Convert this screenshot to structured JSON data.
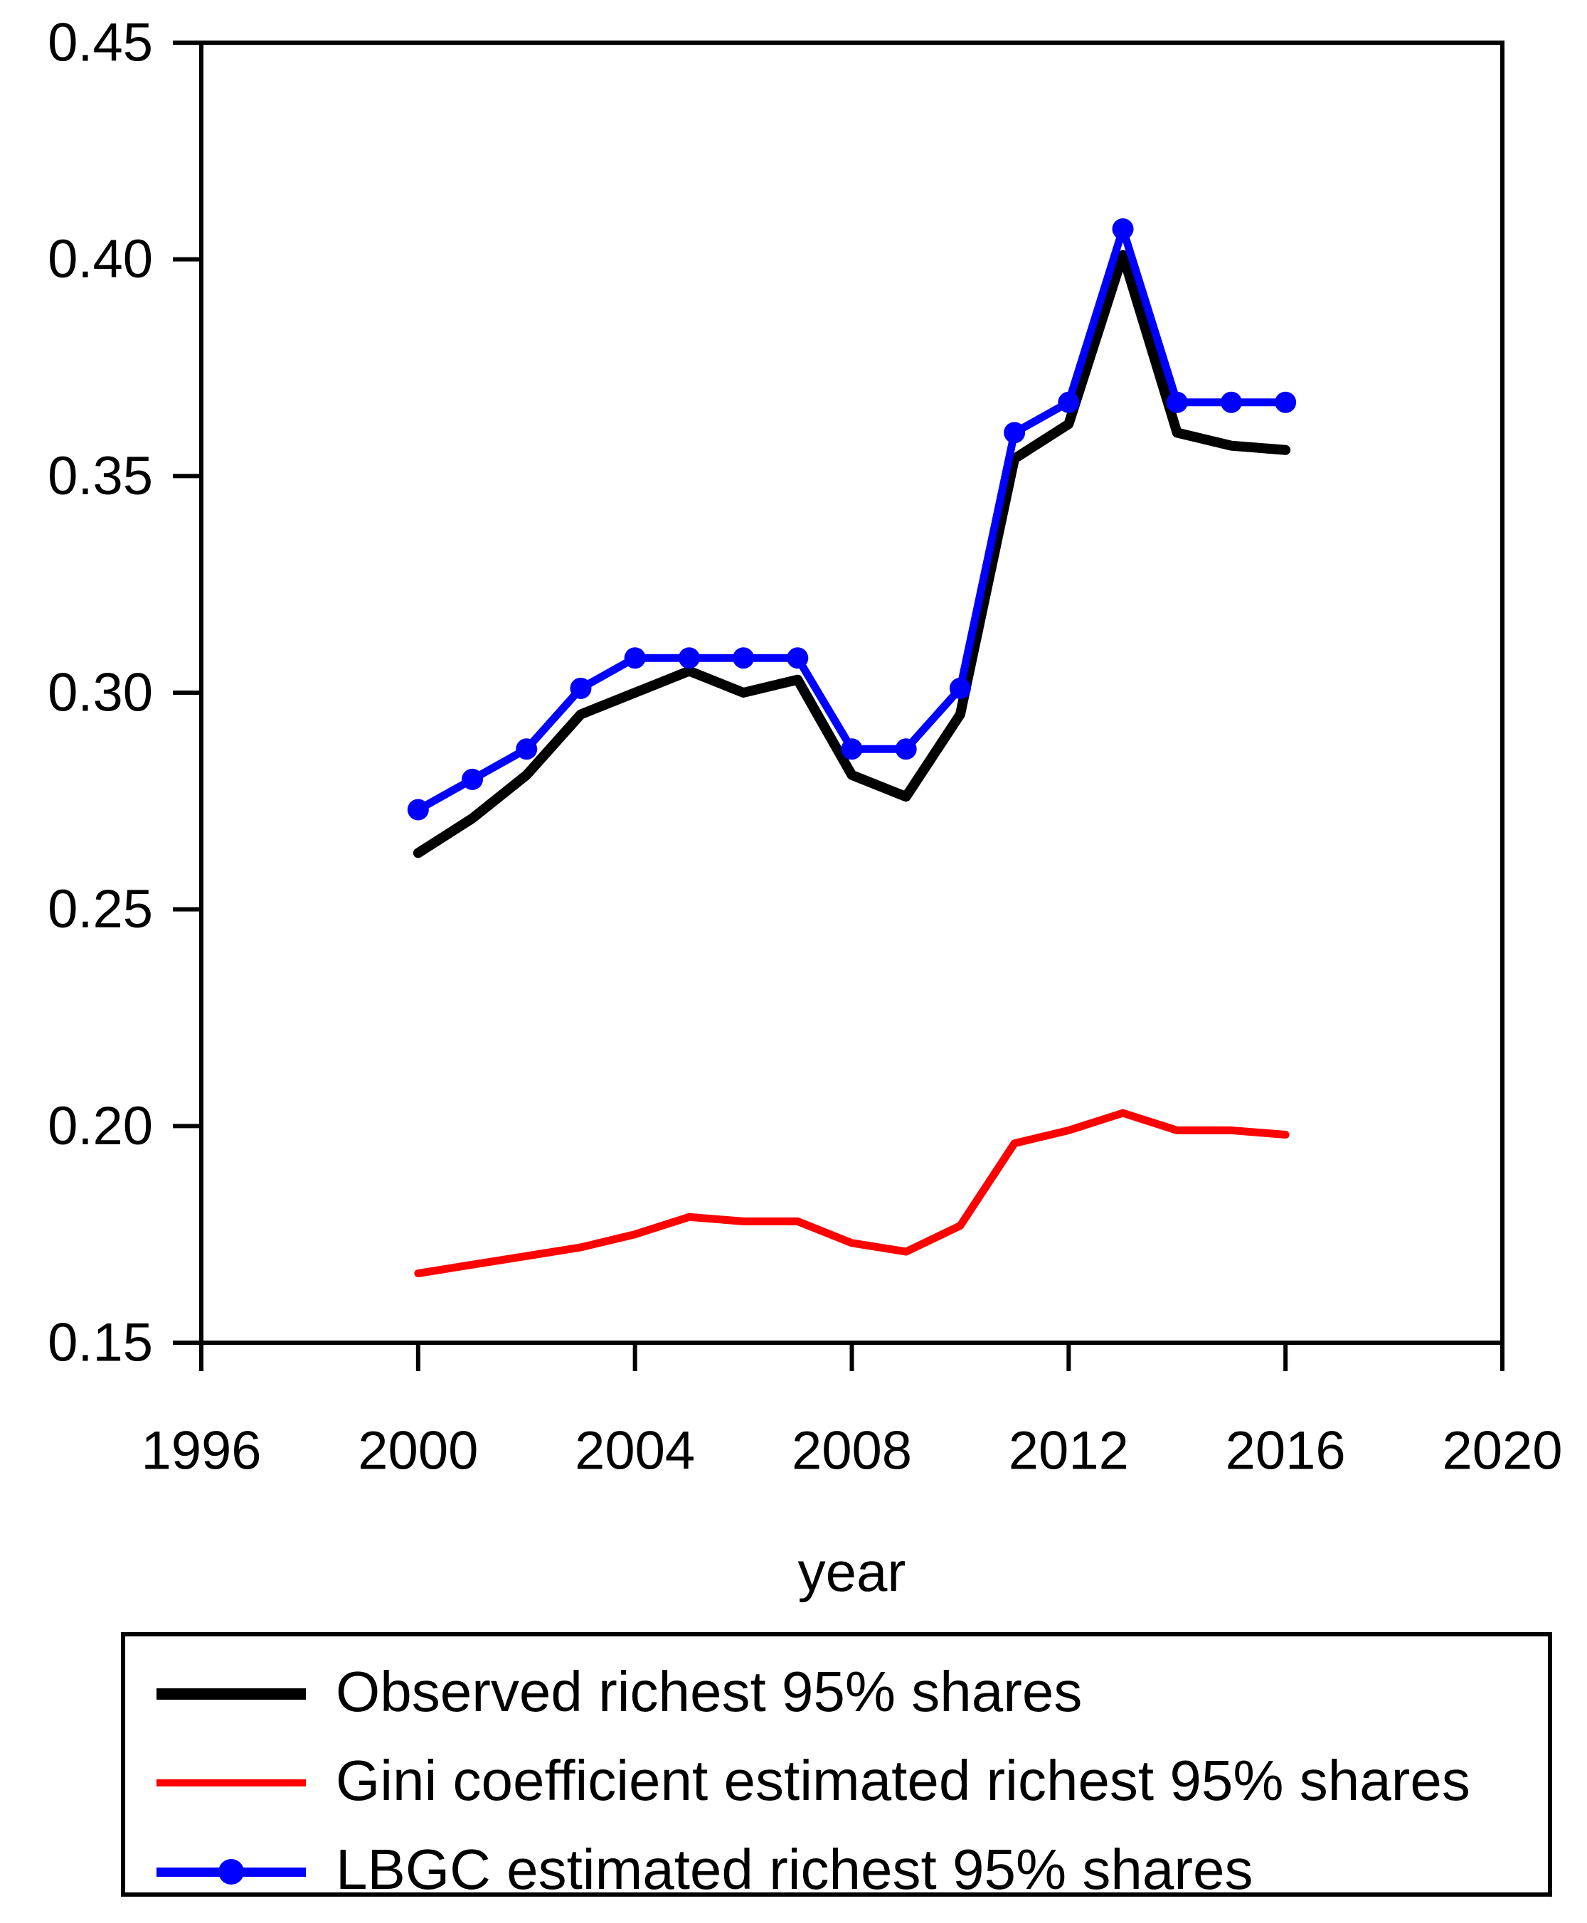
{
  "figure": {
    "background": "#ffffff",
    "xlabel": "year"
  },
  "chart_data": {
    "type": "line",
    "title": "",
    "xlabel": "year",
    "ylabel": "",
    "x_range": [
      1996,
      2020
    ],
    "y_range": [
      0.15,
      0.45
    ],
    "grid": false,
    "legend_position": "bottom",
    "x_tick_values": [
      1996,
      2000,
      2004,
      2008,
      2012,
      2016,
      2020
    ],
    "x_tick_labels": [
      "1996",
      "2000",
      "2004",
      "2008",
      "2012",
      "2016",
      "2020"
    ],
    "y_tick_values": [
      0.45,
      0.4,
      0.35,
      0.3,
      0.25,
      0.2,
      0.15
    ],
    "y_tick_labels": [
      "0.45",
      "0.40",
      "0.35",
      "0.30",
      "0.25",
      "0.20",
      "0.15"
    ],
    "x": [
      2000,
      2001,
      2002,
      2003,
      2004,
      2005,
      2006,
      2007,
      2008,
      2009,
      2010,
      2011,
      2012,
      2013,
      2014,
      2015,
      2016
    ],
    "series": [
      {
        "name": "Observed richest 95% shares",
        "color": "#000000",
        "line_width": 14,
        "marker": "none",
        "values": [
          0.263,
          0.271,
          0.281,
          0.295,
          0.3,
          0.305,
          0.3,
          0.303,
          0.281,
          0.276,
          0.295,
          0.354,
          0.362,
          0.401,
          0.36,
          0.357,
          0.356
        ]
      },
      {
        "name": "Gini coefficient estimated richest 95% shares",
        "color": "#ff0000",
        "line_width": 11,
        "marker": "none",
        "values": [
          0.166,
          0.168,
          0.17,
          0.172,
          0.175,
          0.179,
          0.178,
          0.178,
          0.173,
          0.171,
          0.177,
          0.196,
          0.199,
          0.203,
          0.199,
          0.199,
          0.198
        ]
      },
      {
        "name": "LBGC estimated richest 95% shares",
        "color": "#0000ff",
        "line_width": 11,
        "marker": "circle",
        "marker_radius": 15,
        "values": [
          0.273,
          0.28,
          0.287,
          0.301,
          0.308,
          0.308,
          0.308,
          0.308,
          0.287,
          0.287,
          0.301,
          0.36,
          0.367,
          0.407,
          0.367,
          0.367,
          0.367
        ]
      }
    ]
  }
}
